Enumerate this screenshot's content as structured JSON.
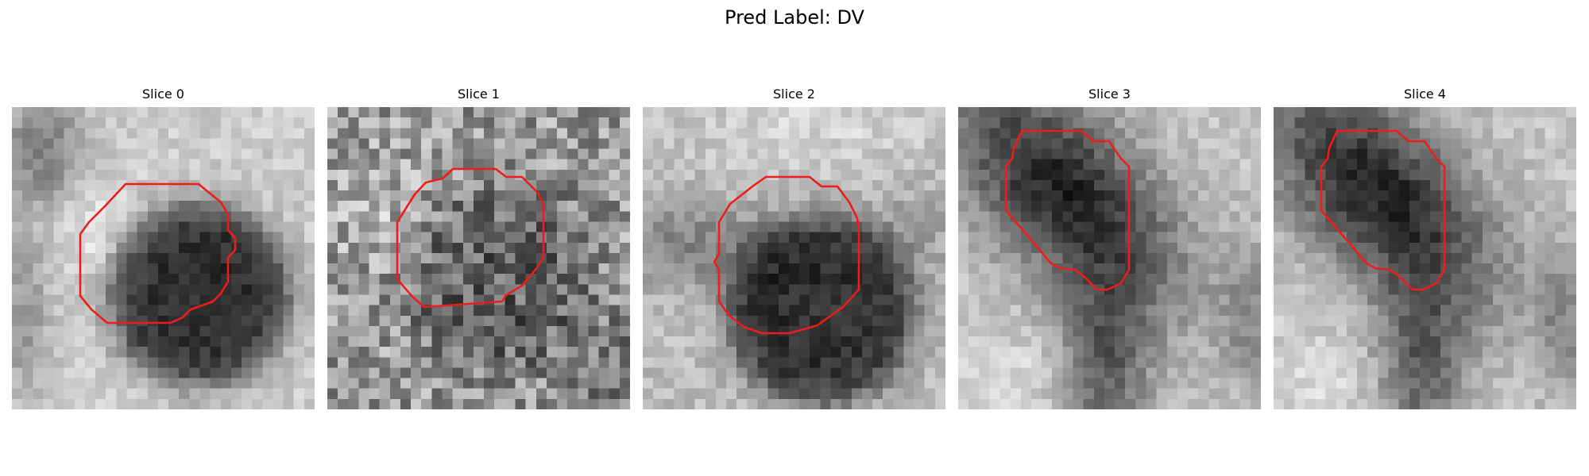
{
  "figure": {
    "title": "Pred Label: DV"
  },
  "panels": [
    {
      "title": "Slice 0"
    },
    {
      "title": "Slice 1"
    },
    {
      "title": "Slice 2"
    },
    {
      "title": "Slice 3"
    },
    {
      "title": "Slice 4"
    }
  ],
  "contour_color": "#ee1c1c"
}
